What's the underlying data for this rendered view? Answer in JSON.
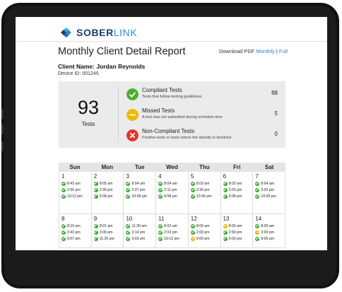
{
  "brand": {
    "name_part1": "SOBER",
    "name_part2": "LINK",
    "accent": "#2a8fd0",
    "dark": "#1a3f6b"
  },
  "report": {
    "title": "Monthly Client Detail Report",
    "download_label": "Download PDF",
    "monthly_link": "Monthly",
    "separator": "|",
    "full_link": "Full"
  },
  "client": {
    "name": "Client Name: Jordan Reynolds",
    "device_id": "Device ID: 001245"
  },
  "summary": {
    "total": "93",
    "total_label": "Tests",
    "rows": [
      {
        "icon": "check-circle-icon",
        "color": "#4caf2f",
        "title": "Compliant Tests",
        "desc": "Tests that follow testing guidelines",
        "count": "88"
      },
      {
        "icon": "minus-circle-icon",
        "color": "#f2b800",
        "title": "Missed Tests",
        "desc": "A test was not submitted during schedule time",
        "count": "5"
      },
      {
        "icon": "x-circle-icon",
        "color": "#e0342c",
        "title": "Non-Compliant Tests",
        "desc": "Positive tests or tests where the identity is declined",
        "count": "0"
      }
    ]
  },
  "calendar": {
    "days": [
      "Sun",
      "Mon",
      "Tue",
      "Wed",
      "Thu",
      "Fri",
      "Sat"
    ],
    "weeks": [
      [
        {
          "day": "1",
          "tests": [
            {
              "s": "ok",
              "t": "8:43 am"
            },
            {
              "s": "ok",
              "t": "2:00 pm"
            },
            {
              "s": "ok",
              "t": "10:12 pm"
            }
          ]
        },
        {
          "day": "2",
          "tests": [
            {
              "s": "ok",
              "t": "8:05 am"
            },
            {
              "s": "ok",
              "t": "2:30 pm"
            },
            {
              "s": "ok",
              "t": "9:08 pm"
            }
          ]
        },
        {
          "day": "3",
          "tests": [
            {
              "s": "ok",
              "t": "8:04 am"
            },
            {
              "s": "ok",
              "t": "2:07 pm"
            },
            {
              "s": "ok",
              "t": "10:08 pm"
            }
          ]
        },
        {
          "day": "4",
          "tests": [
            {
              "s": "ok",
              "t": "8:04 am"
            },
            {
              "s": "ok",
              "t": "2:11 pm"
            },
            {
              "s": "ok",
              "t": "9:08 pm"
            }
          ]
        },
        {
          "day": "5",
          "tests": [
            {
              "s": "ok",
              "t": "8:03 am"
            },
            {
              "s": "ok",
              "t": "3:30 pm"
            },
            {
              "s": "ok",
              "t": "10:45 pm"
            }
          ]
        },
        {
          "day": "6",
          "tests": [
            {
              "s": "ok",
              "t": "8:03 am"
            },
            {
              "s": "ok",
              "t": "2:03 pm"
            },
            {
              "s": "ok",
              "t": "9:08 pm"
            }
          ]
        },
        {
          "day": "7",
          "tests": [
            {
              "s": "ok",
              "t": "8:04 am"
            },
            {
              "s": "ok",
              "t": "3:02 pm"
            },
            {
              "s": "ok",
              "t": "10:09 pm"
            }
          ]
        }
      ],
      [
        {
          "day": "8",
          "tests": [
            {
              "s": "ok",
              "t": "8:10 am"
            },
            {
              "s": "ok",
              "t": "3:43 pm"
            },
            {
              "s": "ok",
              "t": "9:07 pm"
            }
          ]
        },
        {
          "day": "9",
          "tests": [
            {
              "s": "ok",
              "t": "8:01 am"
            },
            {
              "s": "ok",
              "t": "3:06 pm"
            },
            {
              "s": "ok",
              "t": "11:20 pm"
            }
          ]
        },
        {
          "day": "10",
          "tests": [
            {
              "s": "ok",
              "t": "11:30 am"
            },
            {
              "s": "ok",
              "t": "3:14 pm"
            },
            {
              "s": "ok",
              "t": "9:03 pm"
            }
          ]
        },
        {
          "day": "11",
          "tests": [
            {
              "s": "ok",
              "t": "8:02 am"
            },
            {
              "s": "ok",
              "t": "2:03 pm"
            },
            {
              "s": "ok",
              "t": "10:12 pm"
            }
          ]
        },
        {
          "day": "12",
          "tests": [
            {
              "s": "ok",
              "t": "8:00 am"
            },
            {
              "s": "ok",
              "t": "2:00 pm"
            },
            {
              "s": "miss",
              "t": "9:00 pm"
            }
          ]
        },
        {
          "day": "13",
          "tests": [
            {
              "s": "miss",
              "t": "8:00 am"
            },
            {
              "s": "ok",
              "t": "2:50 pm"
            },
            {
              "s": "ok",
              "t": "9:03 pm"
            }
          ]
        },
        {
          "day": "14",
          "tests": [
            {
              "s": "ok",
              "t": "8:00 am"
            },
            {
              "s": "miss",
              "t": "3:00 pm"
            },
            {
              "s": "ok",
              "t": "9:05 pm"
            }
          ]
        }
      ]
    ]
  }
}
